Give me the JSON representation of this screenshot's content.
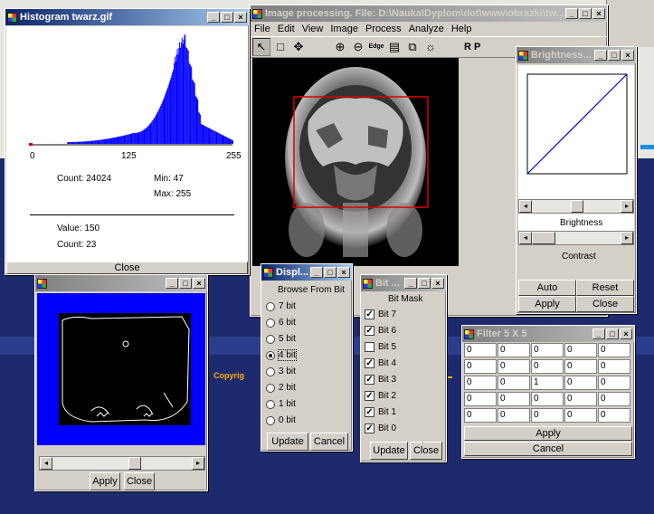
{
  "desktop": {
    "copyright_text": "Copyrig"
  },
  "main": {
    "title": "Image processing. File: D:\\Nauka\\Dyplom\\dot\\www\\obrazki\\tw...",
    "menu": [
      "File",
      "Edit",
      "View",
      "Image",
      "Process",
      "Analyze",
      "Help"
    ],
    "tools": [
      {
        "icon": "arrow-icon",
        "glyph": "↖"
      },
      {
        "icon": "rectangle-icon",
        "glyph": "□"
      },
      {
        "icon": "move-icon",
        "glyph": "✥"
      },
      {
        "icon": "zoom-in-icon",
        "glyph": "⊕"
      },
      {
        "icon": "zoom-out-icon",
        "glyph": "⊖"
      },
      {
        "icon": "edge-icon",
        "glyph": "Edge"
      },
      {
        "icon": "scanner-icon",
        "glyph": "▤"
      },
      {
        "icon": "copy-icon",
        "glyph": "⧉"
      },
      {
        "icon": "sun-icon",
        "glyph": "☼"
      }
    ],
    "rp_label": "R P"
  },
  "histogram": {
    "title": "Histogram twarz.gif",
    "axis_ticks": [
      "0",
      "125",
      "255"
    ],
    "count_label": "Count: 24024",
    "min_label": "Min: 47",
    "max_label": "Max: 255",
    "value_label": "Value: 150",
    "value_count_label": "Count: 23",
    "close_label": "Close",
    "bar_color": "#0000ff"
  },
  "edge_window": {
    "apply_label": "Apply",
    "close_label": "Close",
    "bg_color": "#0000ff"
  },
  "brightness": {
    "title": "Brightness...",
    "brightness_label": "Brightness",
    "contrast_label": "Contrast",
    "auto_label": "Auto",
    "reset_label": "Reset",
    "apply_label": "Apply",
    "close_label": "Close"
  },
  "display_bits": {
    "title": "Displ...",
    "heading": "Browse From Bit",
    "options": [
      "7 bit",
      "6 bit",
      "5 bit",
      "4 bit",
      "3 bit",
      "2 bit",
      "1 bit",
      "0 bit"
    ],
    "selected": "4 bit",
    "update_label": "Update",
    "cancel_label": "Cancel"
  },
  "bit_mask": {
    "title": "Bit ...",
    "heading": "Bit Mask",
    "bits": [
      {
        "label": "Bit 7",
        "checked": true
      },
      {
        "label": "Bit 6",
        "checked": true
      },
      {
        "label": "Bit 5",
        "checked": false
      },
      {
        "label": "Bit 4",
        "checked": true
      },
      {
        "label": "Bit 3",
        "checked": true
      },
      {
        "label": "Bit 2",
        "checked": true
      },
      {
        "label": "Bit 1",
        "checked": true
      },
      {
        "label": "Bit 0",
        "checked": true
      }
    ],
    "update_label": "Update",
    "close_label": "Close"
  },
  "filter": {
    "title": "Filter 5 X 5",
    "grid": [
      [
        "0",
        "0",
        "0",
        "0",
        "0"
      ],
      [
        "0",
        "0",
        "0",
        "0",
        "0"
      ],
      [
        "0",
        "0",
        "1",
        "0",
        "0"
      ],
      [
        "0",
        "0",
        "0",
        "0",
        "0"
      ],
      [
        "0",
        "0",
        "0",
        "0",
        "0"
      ]
    ],
    "apply_label": "Apply",
    "cancel_label": "Cancel"
  },
  "caption_controls": {
    "min": "_",
    "max": "□",
    "close": "×"
  }
}
